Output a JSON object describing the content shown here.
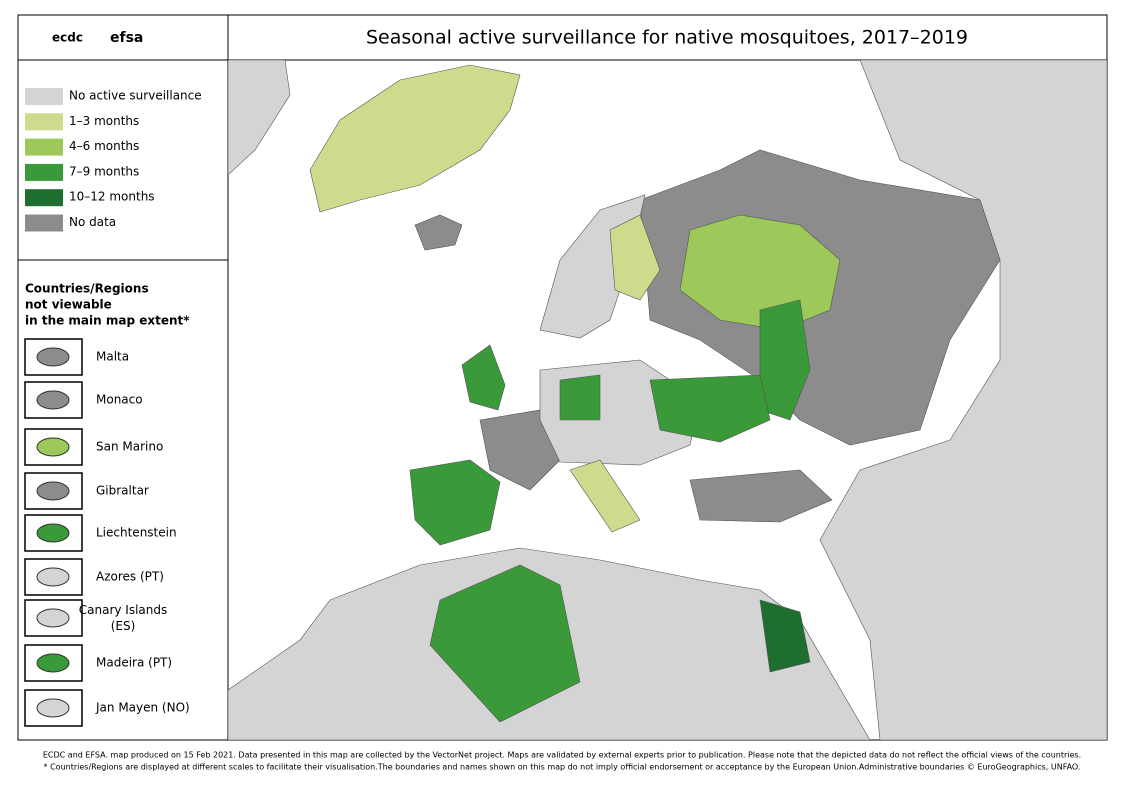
{
  "header": {
    "title": "Seasonal active surveillance for native mosquitoes, 2017–2019",
    "logos": [
      "ecdc",
      "efsa"
    ]
  },
  "legend": {
    "items": [
      {
        "label": "No active surveillance",
        "color": "#d4d4d4"
      },
      {
        "label": "1–3 months",
        "color": "#cddc8c"
      },
      {
        "label": "4–6 months",
        "color": "#9dc85a"
      },
      {
        "label": "7–9 months",
        "color": "#3a9a3a"
      },
      {
        "label": "10–12 months",
        "color": "#1e6e30"
      },
      {
        "label": "No data",
        "color": "#8c8c8c"
      }
    ]
  },
  "insets": {
    "title": [
      "Countries/Regions",
      "not viewable",
      "in the main map extent*"
    ],
    "items": [
      "Malta",
      "Monaco",
      "San Marino",
      "Gibraltar",
      "Liechtenstein",
      "Azores (PT)",
      "Canary Islands (ES)",
      "Madeira (PT)",
      "Jan Mayen (NO)"
    ]
  },
  "footer": [
    "ECDC and EFSA. map produced on 15 Feb 2021. Data presented in this map are collected by the VectorNet project. Maps are validated by external experts prior to publication. Please note that the depicted data do not reflect the official views of the countries.",
    "* Countries/Regions are displayed at different scales to facilitate their visualisation.The boundaries and names shown on this map do not imply official endorsement or acceptance by the European Union.Administrative boundaries © EuroGeographics, UNFAO."
  ]
}
